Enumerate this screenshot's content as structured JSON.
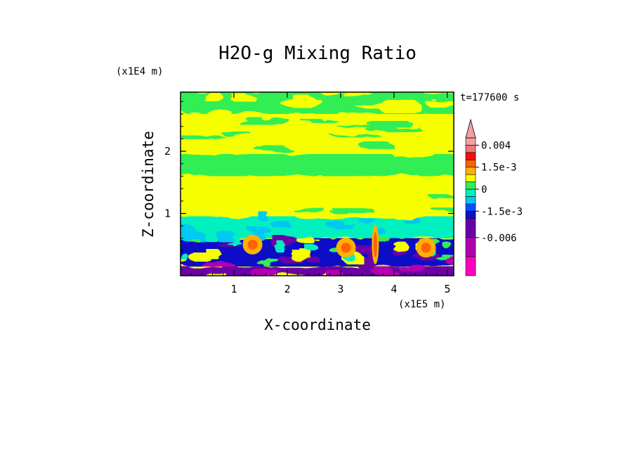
{
  "chart_data": {
    "type": "heatmap",
    "title": "H2O-g Mixing Ratio",
    "xlabel": "X-coordinate",
    "ylabel": "Z-coordinate",
    "x_unit": "(x1E5 m)",
    "y_unit": "(x1E4 m)",
    "time_label": "t=177600 s",
    "xlim": [
      0,
      5.12
    ],
    "ylim": [
      0,
      2.95
    ],
    "x_ticks": [
      "1",
      "2",
      "3",
      "4",
      "5"
    ],
    "x_tick_values": [
      1,
      2,
      3,
      4,
      5
    ],
    "y_ticks": [
      "1",
      "2"
    ],
    "y_tick_values": [
      1,
      2
    ],
    "colorbar": {
      "labels": [
        "0.004",
        "1.5e-3",
        "0",
        "-1.5e-3",
        "-0.006"
      ],
      "colors": [
        "#FF00C0",
        "#B000B0",
        "#6A00A8",
        "#1010C8",
        "#0050FF",
        "#00C8F0",
        "#00F0C0",
        "#33EE55",
        "#F5FF00",
        "#FFB000",
        "#FF6000",
        "#F01010",
        "#F07878",
        "#F5A0A0"
      ]
    },
    "layers": [
      {
        "z_range": [
          2.6,
          2.95
        ],
        "level": "0",
        "color": "#33EE55",
        "note": "mixed green/yellow"
      },
      {
        "z_range": [
          1.95,
          2.6
        ],
        "level": "slightly positive",
        "color": "#F5FF00"
      },
      {
        "z_range": [
          1.6,
          1.95
        ],
        "level": "0",
        "color": "#33EE55"
      },
      {
        "z_range": [
          0.95,
          1.6
        ],
        "level": "slightly positive",
        "color": "#F5FF00"
      },
      {
        "z_range": [
          0.6,
          0.95
        ],
        "level": "slightly negative",
        "color": "#00F0C0"
      },
      {
        "z_range": [
          0.15,
          0.6
        ],
        "level": "mixed negative/positive",
        "color": "#1010C8"
      },
      {
        "z_range": [
          0,
          0.15
        ],
        "level": "strongly negative",
        "color": "#6A00A8"
      }
    ],
    "positive_maxima": [
      {
        "x": 3.1,
        "z": 0.45,
        "level": "1.5e-3"
      },
      {
        "x": 3.65,
        "z": 0.5,
        "level": "0.004"
      },
      {
        "x": 4.6,
        "z": 0.45,
        "level": "1.5e-3"
      },
      {
        "x": 1.35,
        "z": 0.5,
        "level": "1.5e-3"
      }
    ]
  }
}
